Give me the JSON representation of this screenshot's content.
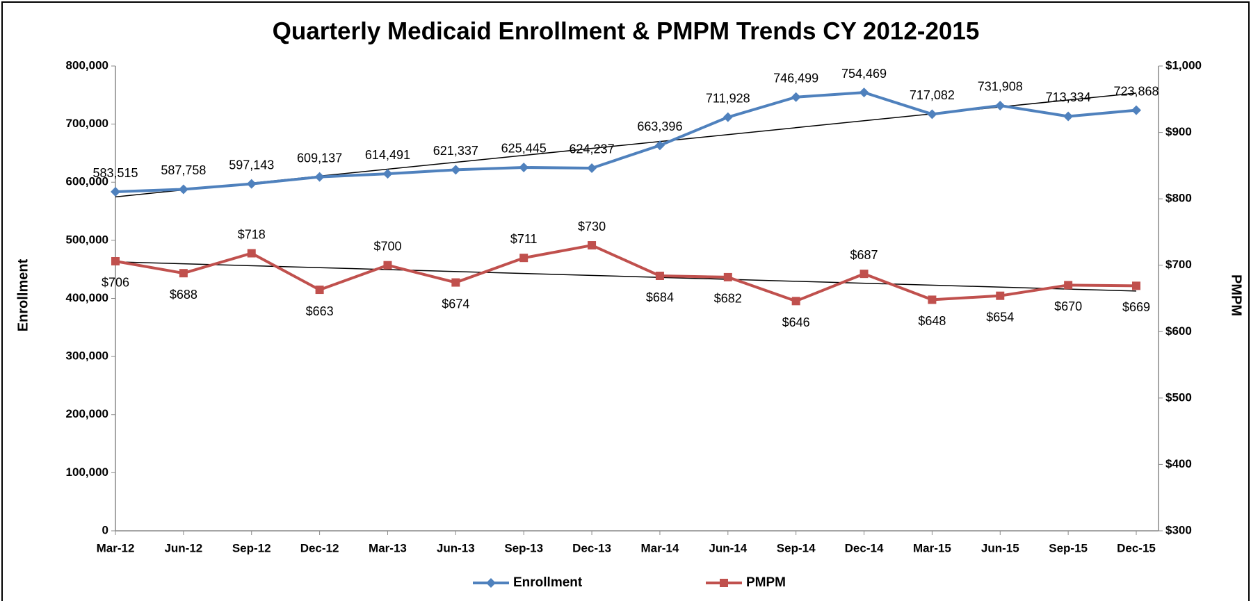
{
  "chart_data": {
    "type": "line",
    "title": "Quarterly Medicaid Enrollment & PMPM Trends CY 2012-2015",
    "ylabel": "Enrollment",
    "y2label": "PMPM",
    "categories": [
      "Mar-12",
      "Jun-12",
      "Sep-12",
      "Dec-12",
      "Mar-13",
      "Jun-13",
      "Sep-13",
      "Dec-13",
      "Mar-14",
      "Jun-14",
      "Sep-14",
      "Dec-14",
      "Mar-15",
      "Jun-15",
      "Sep-15",
      "Dec-15"
    ],
    "series": [
      {
        "name": "Enrollment",
        "color": "#4f81bd",
        "marker": "diamond",
        "trendline": true,
        "values": [
          583515,
          587758,
          597143,
          609137,
          614491,
          621337,
          625445,
          624237,
          663396,
          711928,
          746499,
          754469,
          717082,
          731908,
          713334,
          723868
        ],
        "value_labels": [
          "583,515",
          "587,758",
          "597,143",
          "609,137",
          "614,491",
          "621,337",
          "625,445",
          "624,237",
          "663,396",
          "711,928",
          "746,499",
          "754,469",
          "717,082",
          "731,908",
          "713,334",
          "723,868"
        ]
      },
      {
        "name": "PMPM",
        "color": "#c0504d",
        "marker": "square",
        "trendline": true,
        "axis": "y2",
        "values": [
          706,
          688,
          718,
          663,
          700,
          674,
          711,
          730,
          684,
          682,
          646,
          687,
          648,
          654,
          670,
          669
        ],
        "value_labels": [
          "$706",
          "$688",
          "$718",
          "$663",
          "$700",
          "$674",
          "$711",
          "$730",
          "$684",
          "$682",
          "$646",
          "$687",
          "$648",
          "$654",
          "$670",
          "$669"
        ]
      }
    ],
    "ylim": [
      0,
      800000
    ],
    "yticks": [
      0,
      {
        "value": 100000,
        "label": "100,000"
      },
      {
        "value": 200000,
        "label": "200,000"
      },
      {
        "value": 300000,
        "label": "300,000"
      },
      {
        "value": 400000,
        "label": "400,000"
      },
      {
        "value": 500000,
        "label": "500,000"
      },
      {
        "value": 600000,
        "label": "600,000"
      },
      {
        "value": 700000,
        "label": "700,000"
      },
      {
        "value": 800000,
        "label": "800,000"
      }
    ],
    "y2lim": [
      300,
      1000
    ],
    "y2ticks": [
      {
        "value": 300,
        "label": "$300"
      },
      {
        "value": 400,
        "label": "$400"
      },
      {
        "value": 500,
        "label": "$500"
      },
      {
        "value": 600,
        "label": "$600"
      },
      {
        "value": 700,
        "label": "$700"
      },
      {
        "value": 800,
        "label": "$800"
      },
      {
        "value": 900,
        "label": "$900"
      },
      {
        "value": 1000,
        "label": "$1,000"
      }
    ],
    "legend": "bottom"
  }
}
